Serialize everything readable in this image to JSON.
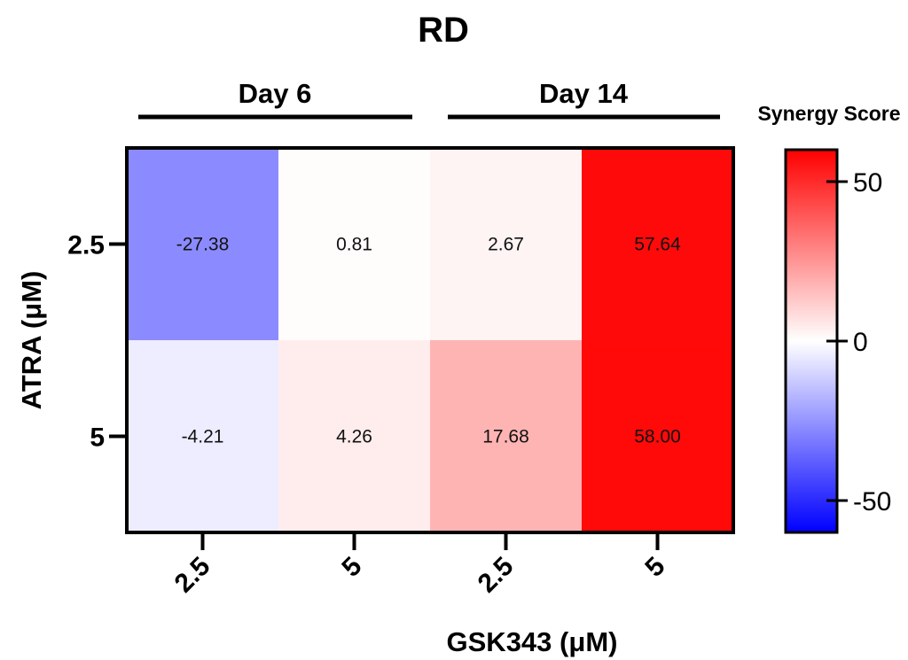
{
  "chart_data": {
    "type": "heatmap",
    "title": "RD",
    "xlabel": "GSK343 (μM)",
    "ylabel": "ATRA (μM)",
    "column_groups": [
      {
        "label": "Day 6",
        "columns": [
          0,
          1
        ]
      },
      {
        "label": "Day 14",
        "columns": [
          2,
          3
        ]
      }
    ],
    "x_categories": [
      "2.5",
      "5",
      "2.5",
      "5"
    ],
    "y_categories": [
      "2.5",
      "5"
    ],
    "values": [
      [
        -27.38,
        0.81,
        2.67,
        57.64
      ],
      [
        -4.21,
        4.26,
        17.68,
        58.0
      ]
    ],
    "value_labels": [
      [
        "-27.38",
        "0.81",
        "2.67",
        "57.64"
      ],
      [
        "-4.21",
        "4.26",
        "17.68",
        "58.00"
      ]
    ],
    "colorbar": {
      "title": "Synergy Score",
      "range": [
        -60,
        60
      ],
      "ticks": [
        50,
        0,
        -50
      ],
      "tick_labels": [
        "50",
        "0",
        "-50"
      ],
      "colors": {
        "low": "#0000ff",
        "mid": "#ffffff",
        "high": "#ff0000"
      }
    }
  }
}
